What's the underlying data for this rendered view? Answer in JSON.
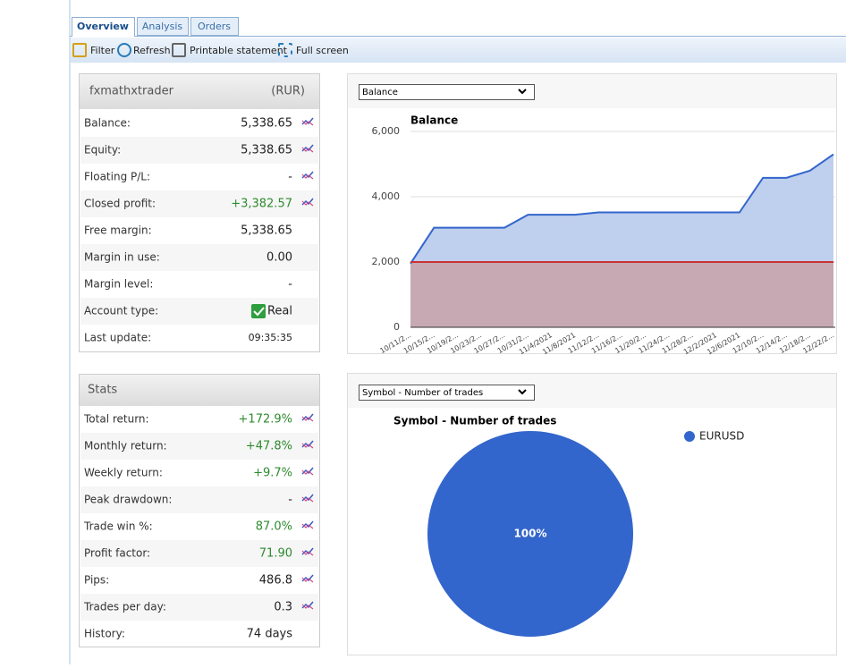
{
  "tabs": [
    "Overview",
    "Analysis",
    "Orders"
  ],
  "toolbar": [
    "Filter",
    "Refresh",
    "Printable statement",
    "Full screen"
  ],
  "account": {
    "title": "fxmathxtrader",
    "currency": "(RUR)",
    "rows": [
      {
        "label": "Balance:",
        "value": "5,338.65",
        "icon": true
      },
      {
        "label": "Equity:",
        "value": "5,338.65",
        "icon": true
      },
      {
        "label": "Floating P/L:",
        "value": "-",
        "icon": true
      },
      {
        "label": "Closed profit:",
        "value": "+3,382.57",
        "value_color": "#2e8b2e",
        "icon": true
      },
      {
        "label": "Free margin:",
        "value": "5,338.65"
      },
      {
        "label": "Margin in use:",
        "value": "0.00"
      },
      {
        "label": "Margin level:",
        "value": "-"
      },
      {
        "label": "Account type:",
        "value": "Real"
      },
      {
        "label": "Last update:",
        "value": "09:35:35"
      }
    ]
  },
  "stats": {
    "title": "Stats",
    "rows": [
      {
        "label": "Total return:",
        "value": "+172.9%",
        "value_color": "#2e8b2e",
        "icon": true
      },
      {
        "label": "Monthly return:",
        "value": "+47.8%",
        "value_color": "#2e8b2e",
        "icon": true
      },
      {
        "label": "Weekly return:",
        "value": "+9.7%",
        "value_color": "#2e8b2e",
        "icon": true
      },
      {
        "label": "Peak drawdown:",
        "value": "-",
        "icon": true
      },
      {
        "label": "Trade win %:",
        "value": "87.0%",
        "value_color": "#2e8b2e",
        "icon": true
      },
      {
        "label": "Profit factor:",
        "value": "71.90",
        "value_color": "#2e8b2e",
        "icon": true
      },
      {
        "label": "Pips:",
        "value": "486.8",
        "icon": true
      },
      {
        "label": "Trades per day:",
        "value": "0.3",
        "icon": true
      },
      {
        "label": "History:",
        "value": "74 days"
      }
    ]
  },
  "balance_select": "Balance",
  "pie_select": "Symbol - Number of trades",
  "chart_data": [
    {
      "type": "area",
      "title": "Balance",
      "categories": [
        "10/11/2...",
        "10/15/2...",
        "10/19/2...",
        "10/23/2...",
        "10/27/2...",
        "10/31/2...",
        "11/4/2021",
        "11/8/2021",
        "11/12/2...",
        "11/16/2...",
        "11/20/2...",
        "11/24/2...",
        "11/28/2...",
        "12/2/2021",
        "12/6/2021",
        "12/10/2...",
        "12/14/2...",
        "12/18/2...",
        "12/22/2..."
      ],
      "series": [
        {
          "color": "#3366cc",
          "fill": "#bfcfee",
          "values": [
            1950,
            3050,
            3050,
            3050,
            3050,
            3450,
            3450,
            3450,
            3520,
            3520,
            3520,
            3520,
            3520,
            3520,
            3520,
            4580,
            4580,
            4800,
            5300
          ]
        },
        {
          "color": "#cc3333",
          "fill": "#c7a4ac",
          "values": [
            2000,
            2000,
            2000,
            2000,
            2000,
            2000,
            2000,
            2000,
            2000,
            2000,
            2000,
            2000,
            2000,
            2000,
            2000,
            2000,
            2000,
            2000,
            2000
          ]
        }
      ],
      "ylim": [
        0,
        6000
      ],
      "yticks": [
        0,
        {
          "value": 2000,
          "label": "2,000"
        },
        {
          "value": 4000,
          "label": "4,000"
        },
        {
          "value": 6000,
          "label": "6,000"
        }
      ],
      "grid": true
    },
    {
      "type": "pie",
      "title": "Symbol - Number of trades",
      "categories": [
        "EURUSD"
      ],
      "values": [
        100
      ],
      "value_labels": [
        "100%"
      ],
      "colors": [
        "#3366cc"
      ],
      "legend": "right"
    }
  ]
}
